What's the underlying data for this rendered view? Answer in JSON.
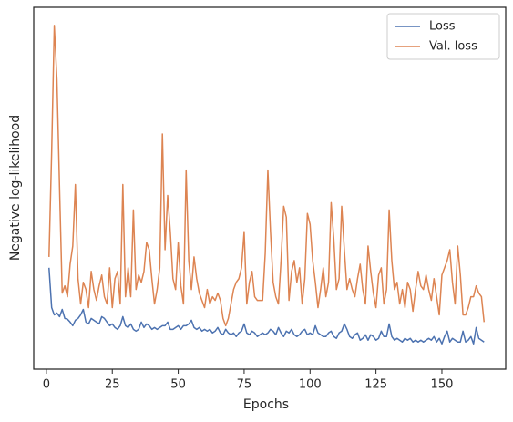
{
  "chart_data": {
    "type": "line",
    "xlabel": "Epochs",
    "ylabel": "Negative log-likelihood",
    "x": [
      1,
      2,
      3,
      4,
      5,
      6,
      7,
      8,
      9,
      10,
      11,
      12,
      13,
      14,
      15,
      16,
      17,
      18,
      19,
      20,
      21,
      22,
      23,
      24,
      25,
      26,
      27,
      28,
      29,
      30,
      31,
      32,
      33,
      34,
      35,
      36,
      37,
      38,
      39,
      40,
      41,
      42,
      43,
      44,
      45,
      46,
      47,
      48,
      49,
      50,
      51,
      52,
      53,
      54,
      55,
      56,
      57,
      58,
      59,
      60,
      61,
      62,
      63,
      64,
      65,
      66,
      67,
      68,
      69,
      70,
      71,
      72,
      73,
      74,
      75,
      76,
      77,
      78,
      79,
      80,
      81,
      82,
      83,
      84,
      85,
      86,
      87,
      88,
      89,
      90,
      91,
      92,
      93,
      94,
      95,
      96,
      97,
      98,
      99,
      100,
      101,
      102,
      103,
      104,
      105,
      106,
      107,
      108,
      109,
      110,
      111,
      112,
      113,
      114,
      115,
      116,
      117,
      118,
      119,
      120,
      121,
      122,
      123,
      124,
      125,
      126,
      127,
      128,
      129,
      130,
      131,
      132,
      133,
      134,
      135,
      136,
      137,
      138,
      139,
      140,
      141,
      142,
      143,
      144,
      145,
      146,
      147,
      148,
      149,
      150,
      151,
      152,
      153,
      154,
      155,
      156,
      157,
      158,
      159,
      160,
      161,
      162,
      163,
      164,
      165,
      166
    ],
    "series": [
      {
        "name": "Loss",
        "color": "#4c72b0",
        "values": [
          28,
          17,
          15,
          15.5,
          14.5,
          16.5,
          14,
          13.8,
          13,
          12,
          13.5,
          14,
          15,
          16.5,
          13,
          12.5,
          14,
          13.5,
          13,
          12.5,
          14.5,
          14,
          13,
          12,
          12.5,
          11.5,
          11,
          12,
          14.5,
          12,
          11.5,
          12.5,
          11,
          10.5,
          11,
          13,
          11.5,
          12.5,
          12,
          11,
          11.5,
          11,
          11.5,
          12,
          12,
          13,
          11,
          11,
          11.5,
          12,
          11,
          12,
          12,
          12.5,
          13.5,
          11.5,
          11,
          11.5,
          10.5,
          11,
          10.5,
          11,
          10,
          10.5,
          11.5,
          10,
          9.5,
          11,
          10,
          9.5,
          10,
          9,
          10,
          10.5,
          12.5,
          10,
          9.5,
          10.5,
          10,
          9,
          9.5,
          10,
          9.5,
          10,
          11,
          10.5,
          9.5,
          11.5,
          10,
          9,
          10.5,
          10,
          11,
          9.5,
          9,
          9.5,
          10.5,
          11,
          9.5,
          10,
          9.5,
          12,
          10,
          9.5,
          9,
          9,
          10,
          10.5,
          9,
          8.5,
          10,
          10.5,
          12.5,
          11,
          9,
          8.5,
          9.5,
          10,
          8,
          8.5,
          9.5,
          8,
          9.5,
          9,
          8,
          8.5,
          10.5,
          9,
          9,
          12.5,
          9,
          8,
          8.5,
          8,
          7.5,
          8.5,
          8,
          8.5,
          7.5,
          8,
          7.5,
          8,
          7.5,
          8,
          8.5,
          8,
          9,
          7.5,
          8.5,
          7,
          9,
          10.5,
          7.5,
          8.5,
          8,
          7.5,
          7.5,
          10.5,
          7.5,
          8,
          9,
          7,
          11.5,
          8.5,
          8,
          7.5
        ]
      },
      {
        "name": "Val. loss",
        "color": "#dd8452",
        "values": [
          31,
          60,
          95,
          80,
          50,
          21,
          23,
          20,
          29,
          34,
          51,
          25,
          18,
          24,
          22,
          17,
          27,
          22,
          19,
          23,
          26,
          20,
          18,
          28,
          17,
          25,
          27,
          18,
          51,
          20,
          28,
          20,
          44,
          22,
          26,
          24,
          27,
          35,
          33,
          25,
          18,
          22,
          28,
          65,
          33,
          48,
          38,
          25,
          22,
          35,
          23,
          18,
          55,
          30,
          22,
          31,
          25,
          21,
          19,
          17,
          22,
          18,
          20,
          19,
          21,
          19,
          14,
          12,
          14,
          18,
          22,
          24,
          25,
          28,
          38,
          18,
          24,
          27,
          20,
          19,
          19,
          19,
          32,
          55,
          38,
          24,
          20,
          18,
          30,
          45,
          42,
          19,
          27,
          30,
          24,
          28,
          18,
          25,
          43,
          40,
          30,
          24,
          17,
          22,
          28,
          20,
          24,
          46,
          36,
          22,
          25,
          45,
          33,
          22,
          25,
          22,
          20,
          25,
          29,
          22,
          18,
          34,
          27,
          21,
          17,
          26,
          28,
          18,
          22,
          44,
          30,
          22,
          24,
          18,
          22,
          17,
          24,
          22,
          16,
          22,
          27,
          23,
          22,
          26,
          22,
          19,
          25,
          20,
          15,
          26,
          28,
          30,
          33,
          24,
          18,
          34,
          26,
          15,
          15,
          17,
          20,
          20,
          23,
          21,
          20,
          13
        ]
      }
    ],
    "xlim": [
      -4.8,
      174.2
    ],
    "xticks": [
      0,
      25,
      50,
      75,
      100,
      125,
      150
    ],
    "ylim": [
      0,
      100
    ],
    "legend": "upper right"
  }
}
